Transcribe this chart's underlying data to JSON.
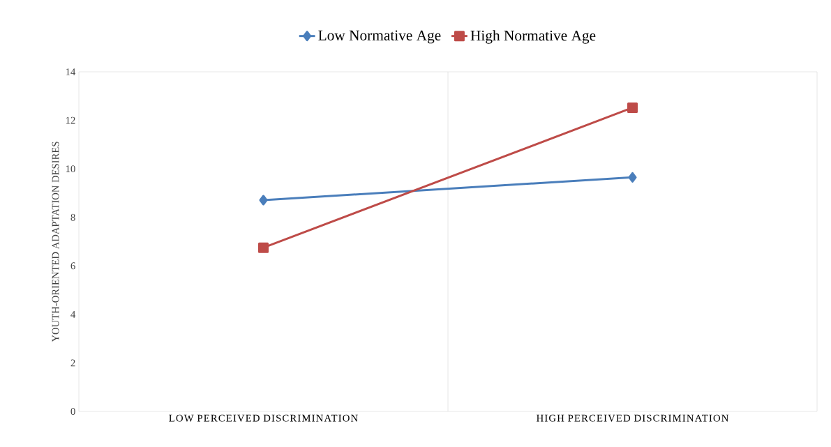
{
  "chart_data": {
    "type": "line",
    "ylabel": "YOUTH-ORIENTED ADAPTATION DESIRES",
    "categories": [
      "LOW PERCEIVED DISCRIMINATION",
      "HIGH PERCEIVED DISCRIMINATION"
    ],
    "series": [
      {
        "name": "Low Normative Age",
        "color": "#4a7ebb",
        "marker": "diamond",
        "values": [
          8.71,
          9.65
        ]
      },
      {
        "name": "High Normative Age",
        "color": "#be4b48",
        "marker": "square",
        "values": [
          6.75,
          12.52
        ]
      }
    ],
    "ylim": [
      0,
      14
    ],
    "yticks": [
      0,
      2,
      4,
      6,
      8,
      10,
      12,
      14
    ],
    "grid": "x",
    "legend": "top",
    "line_style": "solid"
  }
}
